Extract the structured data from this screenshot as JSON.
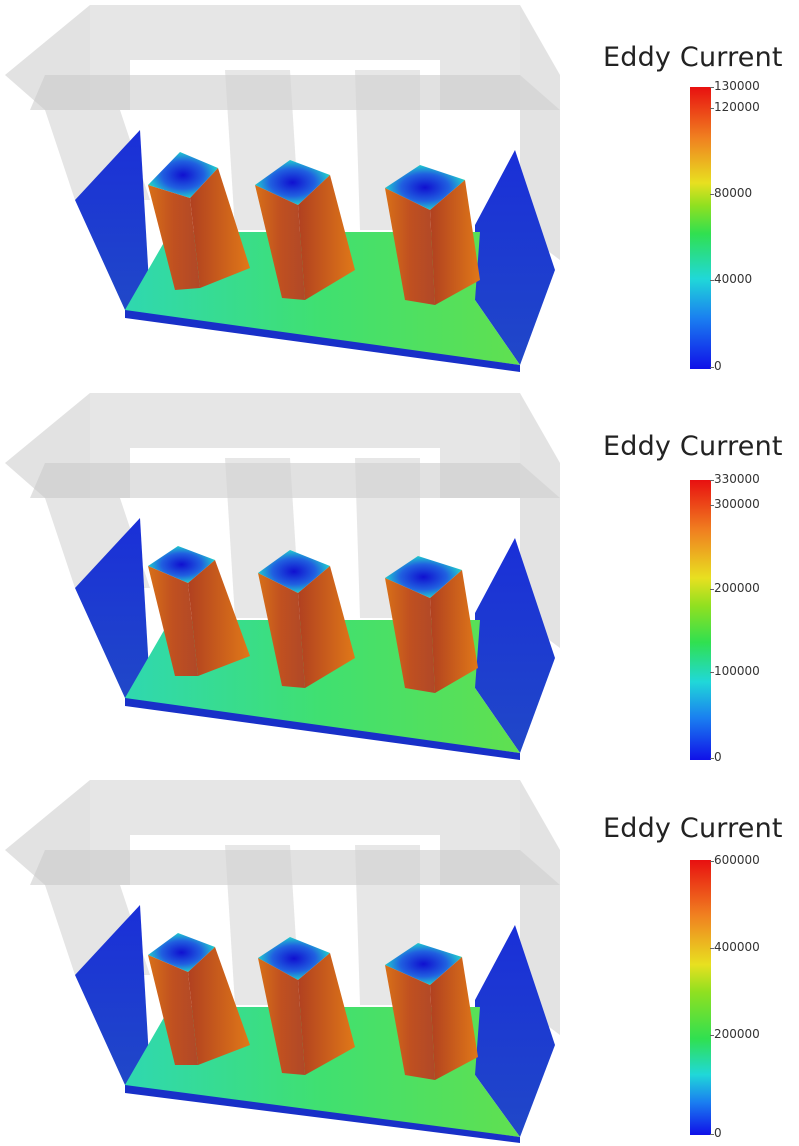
{
  "panels": [
    {
      "legend_title": "Eddy Current",
      "ticks": [
        "130000",
        "120000",
        "80000",
        "40000",
        "0"
      ]
    },
    {
      "legend_title": "Eddy Current",
      "ticks": [
        "330000",
        "300000",
        "200000",
        "100000",
        "0"
      ]
    },
    {
      "legend_title": "Eddy Current",
      "ticks": [
        "600000",
        "400000",
        "200000",
        "0"
      ]
    }
  ],
  "colors": {
    "low": "#1414e6",
    "cyan": "#20d0e0",
    "green": "#40e040",
    "yellow": "#e6e020",
    "red": "#e41010",
    "glass": "#d8d8d8"
  }
}
